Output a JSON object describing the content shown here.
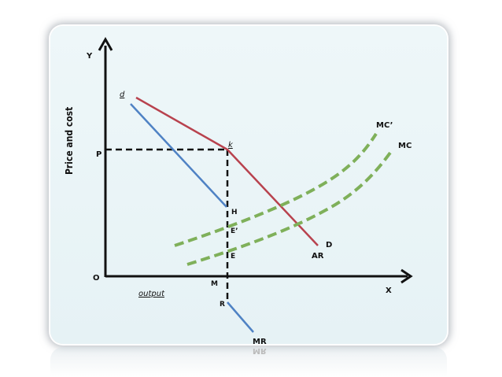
{
  "labels": {
    "y_axis": "Y",
    "x_axis": "X",
    "origin": "O",
    "y_title": "Price and cost",
    "x_title": "output",
    "p": "P",
    "d_small": "d",
    "k": "k",
    "h": "H",
    "e_prime": "E’",
    "e": "E",
    "m": "M",
    "r": "R",
    "d_big": "D",
    "ar": "AR",
    "mr": "MR",
    "mc": "MC",
    "mc_prime": "MC’",
    "mr_reflection": "MR"
  },
  "colors": {
    "axis": "#111111",
    "demand": "#b8424e",
    "mr": "#4f82c4",
    "mc": "#7fb05a",
    "dashed": "#111111"
  }
}
